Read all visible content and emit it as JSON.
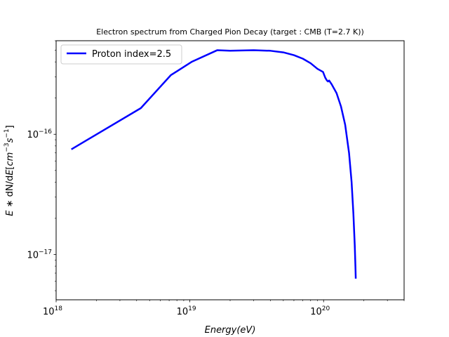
{
  "chart_data": {
    "type": "line",
    "title": "Electron spectrum from Charged Pion Decay (target : CMB (T=2.7 K))",
    "xlabel": "Energy(eV)",
    "ylabel": "E * dN/dE[cm^-3 s^-1]",
    "xscale": "log",
    "yscale": "log",
    "xlim": [
      1e+18,
      4e+20
    ],
    "ylim": [
      4.2e-18,
      6e-16
    ],
    "x_ticks": [
      {
        "value": 1e+18,
        "base": "10",
        "exp": "18"
      },
      {
        "value": 1e+19,
        "base": "10",
        "exp": "19"
      },
      {
        "value": 1e+20,
        "base": "10",
        "exp": "20"
      }
    ],
    "y_ticks": [
      {
        "value": 1e-17,
        "base": "10",
        "exp": "−17"
      },
      {
        "value": 1e-16,
        "base": "10",
        "exp": "−16"
      }
    ],
    "grid": false,
    "legend_position": "upper left",
    "series": [
      {
        "name": "Proton index=2.5",
        "color": "#0000ff",
        "x": [
          1.3e+18,
          4.3e+18,
          7.2e+18,
          1.03e+19,
          1.6e+19,
          2e+19,
          3e+19,
          4e+19,
          5e+19,
          6e+19,
          7e+19,
          8e+19,
          9e+19,
          9.9e+19,
          1.03e+20,
          1.06e+20,
          1.08e+20,
          1.1e+20,
          1.15e+20,
          1.25e+20,
          1.35e+20,
          1.45e+20,
          1.55e+20,
          1.62e+20,
          1.67e+20,
          1.71e+20,
          1.73e+20,
          1.74e+20
        ],
        "y": [
          7.5e-17,
          1.65e-16,
          3.1e-16,
          4e-16,
          5e-16,
          4.95e-16,
          5e-16,
          4.95e-16,
          4.8e-16,
          4.55e-16,
          4.25e-16,
          3.9e-16,
          3.5e-16,
          3.3e-16,
          2.95e-16,
          2.8e-16,
          2.75e-16,
          2.8e-16,
          2.6e-16,
          2.2e-16,
          1.7e-16,
          1.2e-16,
          7e-17,
          4e-17,
          2.2e-17,
          1.2e-17,
          8e-18,
          6.3e-18
        ]
      }
    ]
  }
}
